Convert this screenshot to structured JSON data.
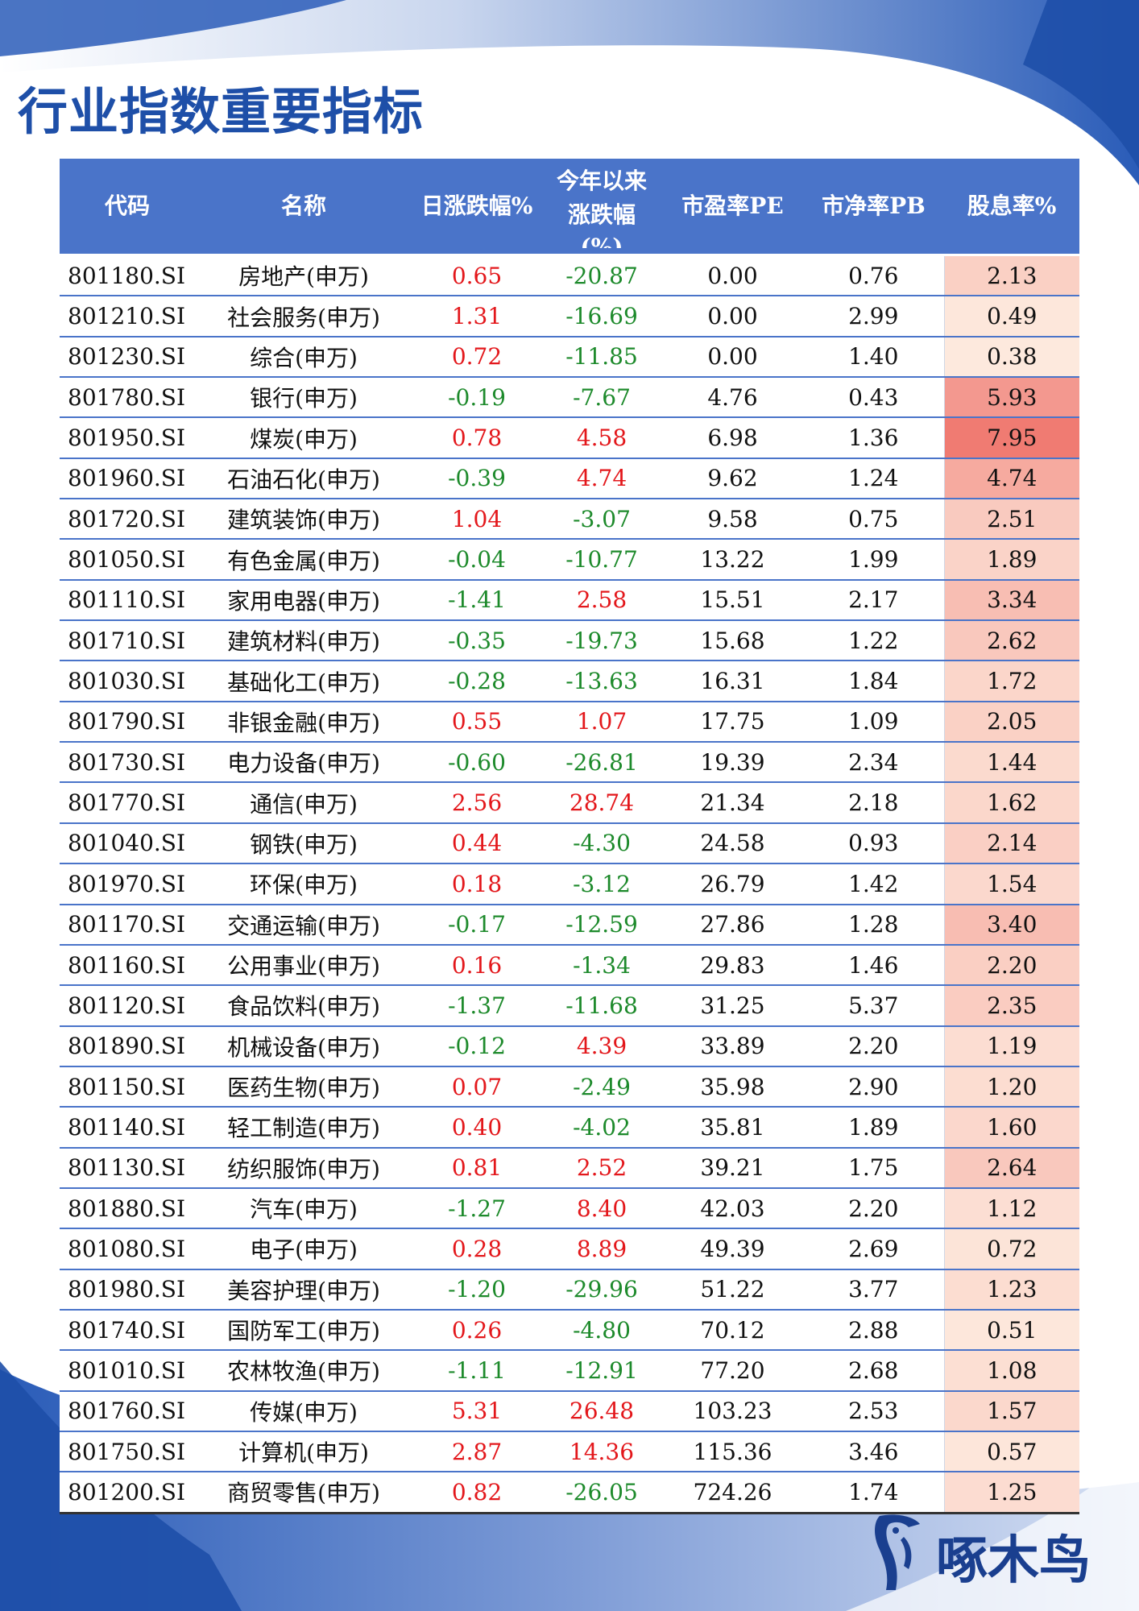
{
  "title": "行业指数重要指标",
  "logo": {
    "text": "啄木鸟",
    "icon": "woodpecker-logo-icon"
  },
  "colors": {
    "brand": "#1e4fa8",
    "header": "#4a74c9",
    "up": "#e3171b",
    "down": "#1d8a2b",
    "heat_max": "#f07b72",
    "heat_min": "#fde9dd"
  },
  "table": {
    "headers": {
      "code": "代码",
      "name": "名称",
      "daily": "日涨跌幅%",
      "ytd_line1": "今年以来",
      "ytd_line2": "涨跌幅",
      "ytd_line3": "(%)",
      "pe": "市盈率PE",
      "pb": "市净率PB",
      "div": "股息率%"
    },
    "rows": [
      {
        "code": "801180.SI",
        "name": "房地产(申万)",
        "daily": "0.65",
        "ytd": "-20.87",
        "pe": "0.00",
        "pb": "0.76",
        "div": "2.13",
        "div_num": 2.13
      },
      {
        "code": "801210.SI",
        "name": "社会服务(申万)",
        "daily": "1.31",
        "ytd": "-16.69",
        "pe": "0.00",
        "pb": "2.99",
        "div": "0.49",
        "div_num": 0.49
      },
      {
        "code": "801230.SI",
        "name": "综合(申万)",
        "daily": "0.72",
        "ytd": "-11.85",
        "pe": "0.00",
        "pb": "1.40",
        "div": "0.38",
        "div_num": 0.38
      },
      {
        "code": "801780.SI",
        "name": "银行(申万)",
        "daily": "-0.19",
        "ytd": "-7.67",
        "pe": "4.76",
        "pb": "0.43",
        "div": "5.93",
        "div_num": 5.93
      },
      {
        "code": "801950.SI",
        "name": "煤炭(申万)",
        "daily": "0.78",
        "ytd": "4.58",
        "pe": "6.98",
        "pb": "1.36",
        "div": "7.95",
        "div_num": 7.95
      },
      {
        "code": "801960.SI",
        "name": "石油石化(申万)",
        "daily": "-0.39",
        "ytd": "4.74",
        "pe": "9.62",
        "pb": "1.24",
        "div": "4.74",
        "div_num": 4.74
      },
      {
        "code": "801720.SI",
        "name": "建筑装饰(申万)",
        "daily": "1.04",
        "ytd": "-3.07",
        "pe": "9.58",
        "pb": "0.75",
        "div": "2.51",
        "div_num": 2.51
      },
      {
        "code": "801050.SI",
        "name": "有色金属(申万)",
        "daily": "-0.04",
        "ytd": "-10.77",
        "pe": "13.22",
        "pb": "1.99",
        "div": "1.89",
        "div_num": 1.89
      },
      {
        "code": "801110.SI",
        "name": "家用电器(申万)",
        "daily": "-1.41",
        "ytd": "2.58",
        "pe": "15.51",
        "pb": "2.17",
        "div": "3.34",
        "div_num": 3.34
      },
      {
        "code": "801710.SI",
        "name": "建筑材料(申万)",
        "daily": "-0.35",
        "ytd": "-19.73",
        "pe": "15.68",
        "pb": "1.22",
        "div": "2.62",
        "div_num": 2.62
      },
      {
        "code": "801030.SI",
        "name": "基础化工(申万)",
        "daily": "-0.28",
        "ytd": "-13.63",
        "pe": "16.31",
        "pb": "1.84",
        "div": "1.72",
        "div_num": 1.72
      },
      {
        "code": "801790.SI",
        "name": "非银金融(申万)",
        "daily": "0.55",
        "ytd": "1.07",
        "pe": "17.75",
        "pb": "1.09",
        "div": "2.05",
        "div_num": 2.05
      },
      {
        "code": "801730.SI",
        "name": "电力设备(申万)",
        "daily": "-0.60",
        "ytd": "-26.81",
        "pe": "19.39",
        "pb": "2.34",
        "div": "1.44",
        "div_num": 1.44
      },
      {
        "code": "801770.SI",
        "name": "通信(申万)",
        "daily": "2.56",
        "ytd": "28.74",
        "pe": "21.34",
        "pb": "2.18",
        "div": "1.62",
        "div_num": 1.62
      },
      {
        "code": "801040.SI",
        "name": "钢铁(申万)",
        "daily": "0.44",
        "ytd": "-4.30",
        "pe": "24.58",
        "pb": "0.93",
        "div": "2.14",
        "div_num": 2.14
      },
      {
        "code": "801970.SI",
        "name": "环保(申万)",
        "daily": "0.18",
        "ytd": "-3.12",
        "pe": "26.79",
        "pb": "1.42",
        "div": "1.54",
        "div_num": 1.54
      },
      {
        "code": "801170.SI",
        "name": "交通运输(申万)",
        "daily": "-0.17",
        "ytd": "-12.59",
        "pe": "27.86",
        "pb": "1.28",
        "div": "3.40",
        "div_num": 3.4
      },
      {
        "code": "801160.SI",
        "name": "公用事业(申万)",
        "daily": "0.16",
        "ytd": "-1.34",
        "pe": "29.83",
        "pb": "1.46",
        "div": "2.20",
        "div_num": 2.2
      },
      {
        "code": "801120.SI",
        "name": "食品饮料(申万)",
        "daily": "-1.37",
        "ytd": "-11.68",
        "pe": "31.25",
        "pb": "5.37",
        "div": "2.35",
        "div_num": 2.35
      },
      {
        "code": "801890.SI",
        "name": "机械设备(申万)",
        "daily": "-0.12",
        "ytd": "4.39",
        "pe": "33.89",
        "pb": "2.20",
        "div": "1.19",
        "div_num": 1.19
      },
      {
        "code": "801150.SI",
        "name": "医药生物(申万)",
        "daily": "0.07",
        "ytd": "-2.49",
        "pe": "35.98",
        "pb": "2.90",
        "div": "1.20",
        "div_num": 1.2
      },
      {
        "code": "801140.SI",
        "name": "轻工制造(申万)",
        "daily": "0.40",
        "ytd": "-4.02",
        "pe": "35.81",
        "pb": "1.89",
        "div": "1.60",
        "div_num": 1.6
      },
      {
        "code": "801130.SI",
        "name": "纺织服饰(申万)",
        "daily": "0.81",
        "ytd": "2.52",
        "pe": "39.21",
        "pb": "1.75",
        "div": "2.64",
        "div_num": 2.64
      },
      {
        "code": "801880.SI",
        "name": "汽车(申万)",
        "daily": "-1.27",
        "ytd": "8.40",
        "pe": "42.03",
        "pb": "2.20",
        "div": "1.12",
        "div_num": 1.12
      },
      {
        "code": "801080.SI",
        "name": "电子(申万)",
        "daily": "0.28",
        "ytd": "8.89",
        "pe": "49.39",
        "pb": "2.69",
        "div": "0.72",
        "div_num": 0.72
      },
      {
        "code": "801980.SI",
        "name": "美容护理(申万)",
        "daily": "-1.20",
        "ytd": "-29.96",
        "pe": "51.22",
        "pb": "3.77",
        "div": "1.23",
        "div_num": 1.23
      },
      {
        "code": "801740.SI",
        "name": "国防军工(申万)",
        "daily": "0.26",
        "ytd": "-4.80",
        "pe": "70.12",
        "pb": "2.88",
        "div": "0.51",
        "div_num": 0.51
      },
      {
        "code": "801010.SI",
        "name": "农林牧渔(申万)",
        "daily": "-1.11",
        "ytd": "-12.91",
        "pe": "77.20",
        "pb": "2.68",
        "div": "1.08",
        "div_num": 1.08
      },
      {
        "code": "801760.SI",
        "name": "传媒(申万)",
        "daily": "5.31",
        "ytd": "26.48",
        "pe": "103.23",
        "pb": "2.53",
        "div": "1.57",
        "div_num": 1.57
      },
      {
        "code": "801750.SI",
        "name": "计算机(申万)",
        "daily": "2.87",
        "ytd": "14.36",
        "pe": "115.36",
        "pb": "3.46",
        "div": "0.57",
        "div_num": 0.57
      },
      {
        "code": "801200.SI",
        "name": "商贸零售(申万)",
        "daily": "0.82",
        "ytd": "-26.05",
        "pe": "724.26",
        "pb": "1.74",
        "div": "1.25",
        "div_num": 1.25
      }
    ]
  }
}
